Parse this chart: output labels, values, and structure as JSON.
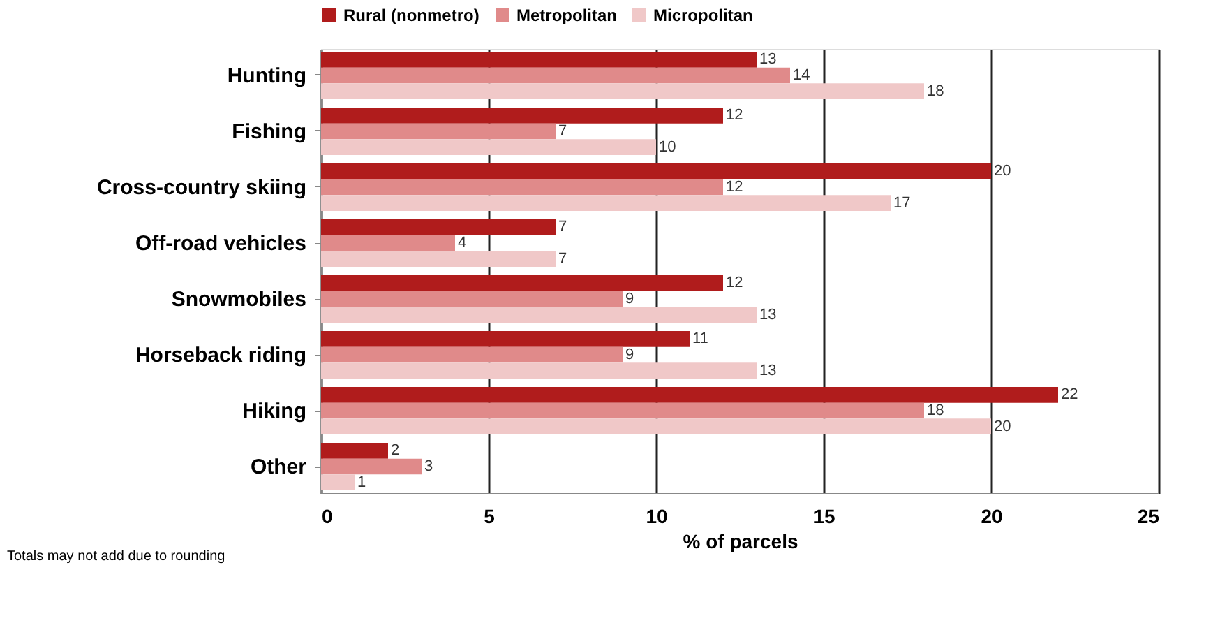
{
  "chart_data": {
    "type": "bar",
    "orientation": "horizontal",
    "xlabel": "% of parcels",
    "categories": [
      "Hunting",
      "Fishing",
      "Cross-country skiing",
      "Off-road vehicles",
      "Snowmobiles",
      "Horseback riding",
      "Hiking",
      "Other"
    ],
    "series": [
      {
        "name": "Rural (nonmetro)",
        "color": "#b01c1c",
        "values": [
          13,
          12,
          20,
          7,
          12,
          11,
          22,
          2
        ]
      },
      {
        "name": "Metropolitan",
        "color": "#e08a8a",
        "values": [
          14,
          7,
          12,
          4,
          9,
          9,
          18,
          3
        ]
      },
      {
        "name": "Micropolitan",
        "color": "#f0c8c8",
        "values": [
          18,
          10,
          17,
          7,
          13,
          13,
          20,
          1
        ]
      }
    ],
    "xlim": [
      0,
      25
    ],
    "xticks": [
      0,
      5,
      10,
      15,
      20,
      25
    ],
    "grid": "x",
    "legend": "top",
    "data_labels": true,
    "annotations": [
      "Totals may not add due to rounding"
    ]
  }
}
